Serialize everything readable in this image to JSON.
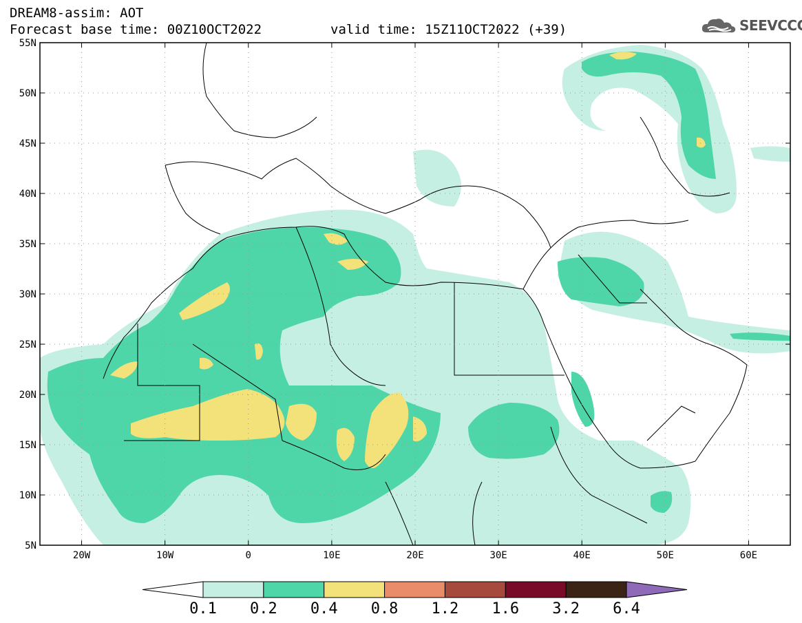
{
  "header": {
    "title": "DREAM8-assim: AOT",
    "base_time": "Forecast base time: 00Z10OCT2022",
    "valid_time": "valid time: 15Z11OCT2022 (+39)"
  },
  "logo": {
    "text": "SEEVCCC",
    "icon": "cloud-icon"
  },
  "map": {
    "lon_range": [
      -25,
      65
    ],
    "lat_range": [
      5,
      55
    ],
    "lat_labels": [
      "55N",
      "50N",
      "45N",
      "40N",
      "35N",
      "30N",
      "25N",
      "20N",
      "15N",
      "10N",
      "5N"
    ],
    "lon_labels": [
      "20W",
      "10W",
      "0",
      "10E",
      "20E",
      "30E",
      "40E",
      "50E",
      "60E"
    ]
  },
  "colorbar": {
    "levels": [
      "0.1",
      "0.2",
      "0.4",
      "0.8",
      "1.2",
      "1.6",
      "3.2",
      "6.4"
    ],
    "colors": [
      "#ffffff",
      "#c6efe4",
      "#4fd6a8",
      "#f3e27a",
      "#e98c6a",
      "#a64a3e",
      "#7a0b28",
      "#3b2315",
      "#8e6ab8"
    ]
  }
}
